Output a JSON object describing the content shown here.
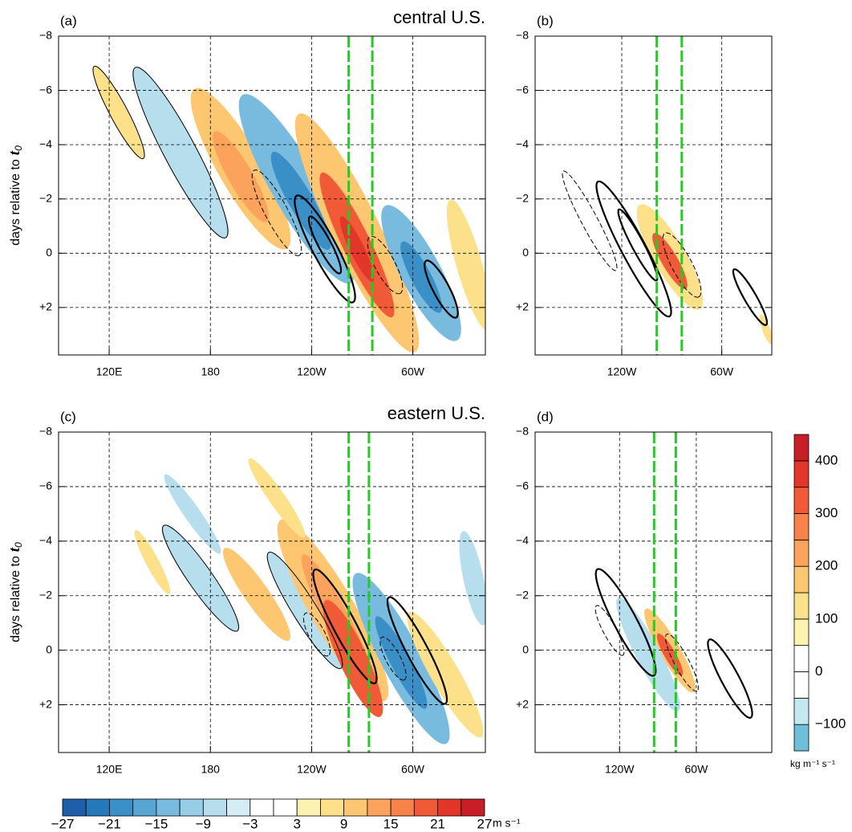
{
  "chart_data": [
    {
      "type": "hovmoller",
      "label": "(a)",
      "title": "central U.S.",
      "ylabel": {
        "text": "days relative to",
        "symbol": "t",
        "subscript": "0"
      },
      "xlim": [
        90,
        343
      ],
      "ylim": [
        -8,
        3.75
      ],
      "xticks": [
        {
          "value": 120,
          "label": "120E"
        },
        180,
        {
          "value": 240,
          "label": "120W"
        },
        {
          "value": 300,
          "label": "60W"
        }
      ],
      "yticks": [
        {
          "value": -8,
          "label": "−8"
        },
        {
          "value": -6,
          "label": "−6"
        },
        {
          "value": -4,
          "label": "−4"
        },
        {
          "value": -2,
          "label": "−2"
        },
        0,
        {
          "value": 2,
          "label": "+2"
        }
      ],
      "region_lon": [
        262,
        276
      ],
      "grid": true
    },
    {
      "type": "hovmoller",
      "label": "(b)",
      "xlim": [
        188,
        330
      ],
      "ylim": [
        -8,
        3.75
      ],
      "xticks": [
        {
          "value": 240,
          "label": "120W"
        },
        {
          "value": 300,
          "label": "60W"
        }
      ],
      "yticks": [
        {
          "value": -8,
          "label": "−8"
        },
        {
          "value": -6,
          "label": "−6"
        },
        {
          "value": -4,
          "label": "−4"
        },
        {
          "value": -2,
          "label": "−2"
        },
        0,
        {
          "value": 2,
          "label": "+2"
        }
      ],
      "region_lon": [
        261,
        276
      ],
      "grid": true
    },
    {
      "type": "hovmoller",
      "label": "(c)",
      "title": "eastern U.S.",
      "ylabel": {
        "text": "days relative to",
        "symbol": "t",
        "subscript": "0"
      },
      "xlim": [
        90,
        343
      ],
      "ylim": [
        -8,
        3.75
      ],
      "xticks": [
        {
          "value": 120,
          "label": "120E"
        },
        180,
        {
          "value": 240,
          "label": "120W"
        },
        {
          "value": 300,
          "label": "60W"
        }
      ],
      "yticks": [
        {
          "value": -8,
          "label": "−8"
        },
        {
          "value": -6,
          "label": "−6"
        },
        {
          "value": -4,
          "label": "−4"
        },
        {
          "value": -2,
          "label": "−2"
        },
        0,
        {
          "value": 2,
          "label": "+2"
        }
      ],
      "region_lon": [
        262,
        274
      ],
      "grid": true
    },
    {
      "type": "hovmoller",
      "label": "(d)",
      "xlim": [
        174,
        359
      ],
      "ylim": [
        -8,
        3.75
      ],
      "xticks": [
        {
          "value": 240,
          "label": "120W"
        },
        {
          "value": 300,
          "label": "60W"
        }
      ],
      "yticks": [
        {
          "value": -8,
          "label": "−8"
        },
        {
          "value": -6,
          "label": "−6"
        },
        {
          "value": -4,
          "label": "−4"
        },
        {
          "value": -2,
          "label": "−2"
        },
        0,
        {
          "value": 2,
          "label": "+2"
        }
      ],
      "region_lon": [
        267,
        284
      ],
      "grid": true
    }
  ],
  "colorbars": [
    {
      "orientation": "horizontal",
      "unit": "m s⁻¹",
      "levels": [
        -27,
        -24,
        -21,
        -18,
        -15,
        -12,
        -9,
        -6,
        -3,
        0,
        3,
        6,
        9,
        12,
        15,
        18,
        21,
        24,
        27
      ],
      "colors": [
        "#1f5fa9",
        "#2679b8",
        "#3a8fc7",
        "#58a5d4",
        "#79bbdf",
        "#98cde6",
        "#b7deed",
        "#d5eef5",
        "#ffffff",
        "#ffffff",
        "#fdf3b0",
        "#fde08a",
        "#fcc770",
        "#fba35c",
        "#f7824a",
        "#f05a37",
        "#e3362b",
        "#c81e27"
      ],
      "ticks": [
        {
          "value": -27,
          "label": "−27"
        },
        {
          "value": -21,
          "label": "−21"
        },
        {
          "value": -15,
          "label": "−15"
        },
        {
          "value": -9,
          "label": "−9"
        },
        {
          "value": -3,
          "label": "−3"
        },
        3,
        9,
        15,
        21,
        27
      ]
    },
    {
      "orientation": "vertical",
      "unit": "kg m⁻¹ s⁻¹",
      "levels": [
        -150,
        -100,
        -50,
        0,
        50,
        100,
        150,
        200,
        250,
        300,
        350,
        400,
        450
      ],
      "colors": [
        "#6fbfd9",
        "#c4e8f0",
        "#ffffff",
        "#ffffff",
        "#fdf3b0",
        "#fde08a",
        "#fcc770",
        "#fba35c",
        "#f7824a",
        "#f05a37",
        "#e3362b",
        "#c81e27"
      ],
      "ticks": [
        {
          "value": -100,
          "label": "−100"
        },
        0,
        100,
        200,
        300,
        400
      ]
    }
  ]
}
